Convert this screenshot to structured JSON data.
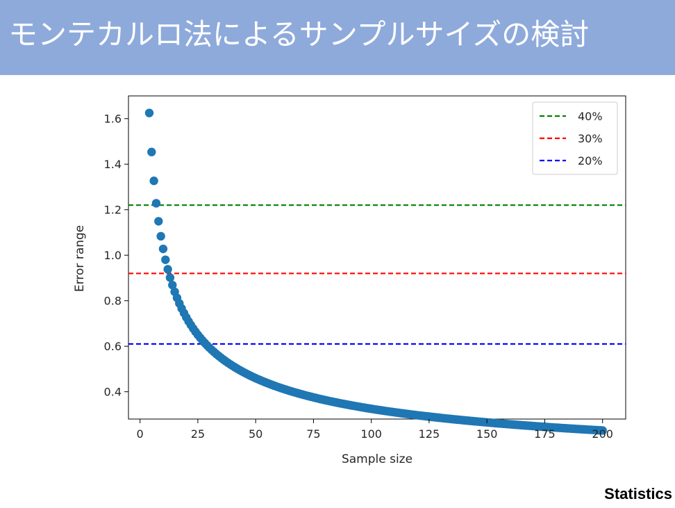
{
  "header": {
    "title": "モンテカルロ法によるサンプルサイズの検討",
    "background_color": "#8eaadb",
    "text_color": "#ffffff"
  },
  "footer": {
    "label": "Statistics"
  },
  "chart_data": {
    "type": "scatter",
    "title": "",
    "xlabel": "Sample size",
    "ylabel": "Error range",
    "xlim": [
      -5,
      210
    ],
    "ylim": [
      0.28,
      1.7
    ],
    "xticks": [
      0,
      25,
      50,
      75,
      100,
      125,
      150,
      175,
      200
    ],
    "xtick_labels": [
      "0",
      "25",
      "50",
      "75",
      "100",
      "125",
      "150",
      "175",
      "200"
    ],
    "yticks": [
      0.4,
      0.6,
      0.8,
      1.0,
      1.2,
      1.4,
      1.6
    ],
    "ytick_labels": [
      "0.4",
      "0.6",
      "0.8",
      "1.0",
      "1.2",
      "1.4",
      "1.6"
    ],
    "grid": false,
    "legend_position": "top-right",
    "series": [
      {
        "kind": "points",
        "color": "#1f77b4",
        "x_start": 4,
        "x_end": 200,
        "x_step": 1,
        "y_at_x_start": 1.625,
        "y_model": "y = y_at_x_start * sqrt(x_start / x)"
      }
    ],
    "reference_lines": [
      {
        "label": "40%",
        "y": 1.22,
        "color": "#008000",
        "style": "dashed"
      },
      {
        "label": "30%",
        "y": 0.92,
        "color": "#ff0000",
        "style": "dashed"
      },
      {
        "label": "20%",
        "y": 0.61,
        "color": "#0000ff",
        "style": "dashed"
      }
    ]
  }
}
